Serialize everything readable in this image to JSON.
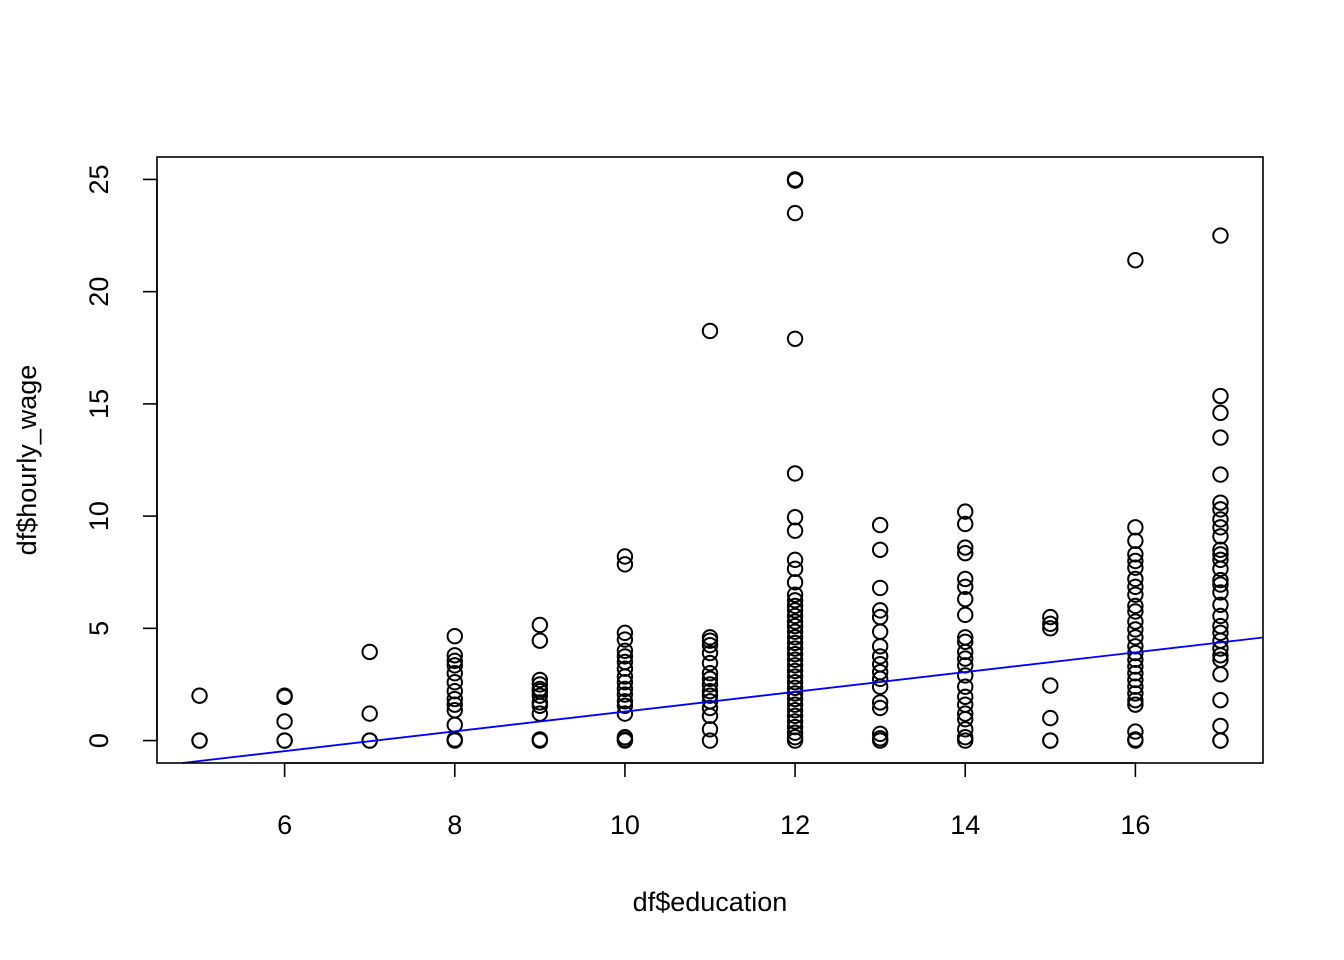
{
  "chart_data": {
    "type": "scatter",
    "xlabel": "df$education",
    "ylabel": "df$hourly_wage",
    "xlim": [
      4.5,
      17.5
    ],
    "ylim": [
      -1,
      26
    ],
    "x_ticks": [
      "6",
      "8",
      "10",
      "12",
      "14",
      "16"
    ],
    "y_ticks": [
      "0",
      "5",
      "10",
      "15",
      "20",
      "25"
    ],
    "grid": false,
    "point_color": "#000000",
    "fit_line": {
      "intercept": -3.11,
      "slope": 0.44,
      "color": "#0000ff"
    },
    "series": [
      {
        "points": [
          [
            5,
            2.0
          ],
          [
            5,
            0
          ],
          [
            5,
            0
          ],
          [
            6,
            2.0
          ],
          [
            6,
            1.95
          ],
          [
            6,
            0.85
          ],
          [
            6,
            0
          ],
          [
            6,
            0
          ],
          [
            7,
            3.95
          ],
          [
            7,
            1.2
          ],
          [
            7,
            0
          ],
          [
            7,
            0
          ],
          [
            8,
            4.65
          ],
          [
            8,
            3.8
          ],
          [
            8,
            3.55
          ],
          [
            8,
            3.35
          ],
          [
            8,
            3.0
          ],
          [
            8,
            2.6
          ],
          [
            8,
            2.2
          ],
          [
            8,
            1.85
          ],
          [
            8,
            1.6
          ],
          [
            8,
            1.35
          ],
          [
            8,
            0.7
          ],
          [
            8,
            0.05
          ],
          [
            8,
            0
          ],
          [
            9,
            5.15
          ],
          [
            9,
            4.45
          ],
          [
            9,
            2.7
          ],
          [
            9,
            2.5
          ],
          [
            9,
            2.3
          ],
          [
            9,
            2.2
          ],
          [
            9,
            2.0
          ],
          [
            9,
            1.7
          ],
          [
            9,
            1.55
          ],
          [
            9,
            1.2
          ],
          [
            9,
            0.05
          ],
          [
            9,
            0
          ],
          [
            10,
            8.2
          ],
          [
            10,
            7.85
          ],
          [
            10,
            4.8
          ],
          [
            10,
            4.5
          ],
          [
            10,
            4.0
          ],
          [
            10,
            3.75
          ],
          [
            10,
            3.5
          ],
          [
            10,
            3.2
          ],
          [
            10,
            2.85
          ],
          [
            10,
            2.6
          ],
          [
            10,
            2.3
          ],
          [
            10,
            2.05
          ],
          [
            10,
            1.75
          ],
          [
            10,
            1.55
          ],
          [
            10,
            1.2
          ],
          [
            10,
            0.15
          ],
          [
            10,
            0.05
          ],
          [
            10,
            0
          ],
          [
            11,
            18.25
          ],
          [
            11,
            4.6
          ],
          [
            11,
            4.45
          ],
          [
            11,
            4.25
          ],
          [
            11,
            3.9
          ],
          [
            11,
            3.45
          ],
          [
            11,
            3.0
          ],
          [
            11,
            2.75
          ],
          [
            11,
            2.5
          ],
          [
            11,
            2.2
          ],
          [
            11,
            2.0
          ],
          [
            11,
            1.75
          ],
          [
            11,
            1.45
          ],
          [
            11,
            1.1
          ],
          [
            11,
            0.5
          ],
          [
            11,
            0
          ],
          [
            12,
            25.0
          ],
          [
            12,
            24.95
          ],
          [
            12,
            23.5
          ],
          [
            12,
            17.9
          ],
          [
            12,
            11.9
          ],
          [
            12,
            9.95
          ],
          [
            12,
            9.35
          ],
          [
            12,
            8.05
          ],
          [
            12,
            7.65
          ],
          [
            12,
            7.05
          ],
          [
            12,
            6.5
          ],
          [
            12,
            6.25
          ],
          [
            12,
            6.0
          ],
          [
            12,
            5.8
          ],
          [
            12,
            5.55
          ],
          [
            12,
            5.3
          ],
          [
            12,
            5.1
          ],
          [
            12,
            4.85
          ],
          [
            12,
            4.6
          ],
          [
            12,
            4.35
          ],
          [
            12,
            4.1
          ],
          [
            12,
            3.85
          ],
          [
            12,
            3.6
          ],
          [
            12,
            3.35
          ],
          [
            12,
            3.1
          ],
          [
            12,
            2.85
          ],
          [
            12,
            2.6
          ],
          [
            12,
            2.35
          ],
          [
            12,
            2.1
          ],
          [
            12,
            1.85
          ],
          [
            12,
            1.6
          ],
          [
            12,
            1.35
          ],
          [
            12,
            1.1
          ],
          [
            12,
            0.85
          ],
          [
            12,
            0.6
          ],
          [
            12,
            0.35
          ],
          [
            12,
            0.15
          ],
          [
            12,
            0
          ],
          [
            13,
            9.6
          ],
          [
            13,
            8.5
          ],
          [
            13,
            6.8
          ],
          [
            13,
            5.8
          ],
          [
            13,
            5.5
          ],
          [
            13,
            4.85
          ],
          [
            13,
            4.2
          ],
          [
            13,
            3.75
          ],
          [
            13,
            3.4
          ],
          [
            13,
            3.05
          ],
          [
            13,
            2.75
          ],
          [
            13,
            2.4
          ],
          [
            13,
            1.7
          ],
          [
            13,
            1.45
          ],
          [
            13,
            0.3
          ],
          [
            13,
            0.1
          ],
          [
            13,
            0
          ],
          [
            14,
            10.2
          ],
          [
            14,
            9.65
          ],
          [
            14,
            8.6
          ],
          [
            14,
            8.35
          ],
          [
            14,
            7.2
          ],
          [
            14,
            6.85
          ],
          [
            14,
            6.3
          ],
          [
            14,
            5.6
          ],
          [
            14,
            4.6
          ],
          [
            14,
            4.4
          ],
          [
            14,
            3.95
          ],
          [
            14,
            3.65
          ],
          [
            14,
            3.35
          ],
          [
            14,
            2.9
          ],
          [
            14,
            2.4
          ],
          [
            14,
            1.95
          ],
          [
            14,
            1.6
          ],
          [
            14,
            1.2
          ],
          [
            14,
            0.95
          ],
          [
            14,
            0.5
          ],
          [
            14,
            0.15
          ],
          [
            14,
            0
          ],
          [
            15,
            5.5
          ],
          [
            15,
            5.2
          ],
          [
            15,
            5.0
          ],
          [
            15,
            2.45
          ],
          [
            15,
            1.0
          ],
          [
            15,
            0
          ],
          [
            15,
            0
          ],
          [
            16,
            21.4
          ],
          [
            16,
            9.5
          ],
          [
            16,
            8.9
          ],
          [
            16,
            8.3
          ],
          [
            16,
            8.0
          ],
          [
            16,
            7.7
          ],
          [
            16,
            7.2
          ],
          [
            16,
            6.85
          ],
          [
            16,
            6.5
          ],
          [
            16,
            6.0
          ],
          [
            16,
            5.75
          ],
          [
            16,
            5.3
          ],
          [
            16,
            4.95
          ],
          [
            16,
            4.6
          ],
          [
            16,
            4.2
          ],
          [
            16,
            3.9
          ],
          [
            16,
            3.6
          ],
          [
            16,
            3.3
          ],
          [
            16,
            3.0
          ],
          [
            16,
            2.7
          ],
          [
            16,
            2.4
          ],
          [
            16,
            2.1
          ],
          [
            16,
            1.8
          ],
          [
            16,
            1.6
          ],
          [
            16,
            0.4
          ],
          [
            16,
            0.05
          ],
          [
            16,
            0
          ],
          [
            17,
            22.5
          ],
          [
            17,
            15.35
          ],
          [
            17,
            14.6
          ],
          [
            17,
            13.5
          ],
          [
            17,
            11.85
          ],
          [
            17,
            10.6
          ],
          [
            17,
            10.3
          ],
          [
            17,
            9.85
          ],
          [
            17,
            9.5
          ],
          [
            17,
            9.1
          ],
          [
            17,
            8.5
          ],
          [
            17,
            8.3
          ],
          [
            17,
            8.05
          ],
          [
            17,
            7.65
          ],
          [
            17,
            7.15
          ],
          [
            17,
            6.95
          ],
          [
            17,
            6.6
          ],
          [
            17,
            6.05
          ],
          [
            17,
            5.55
          ],
          [
            17,
            5.1
          ],
          [
            17,
            4.8
          ],
          [
            17,
            4.45
          ],
          [
            17,
            4.1
          ],
          [
            17,
            3.8
          ],
          [
            17,
            3.6
          ],
          [
            17,
            2.95
          ],
          [
            17,
            1.8
          ],
          [
            17,
            0.65
          ],
          [
            17,
            0
          ],
          [
            17,
            0
          ]
        ]
      }
    ]
  }
}
